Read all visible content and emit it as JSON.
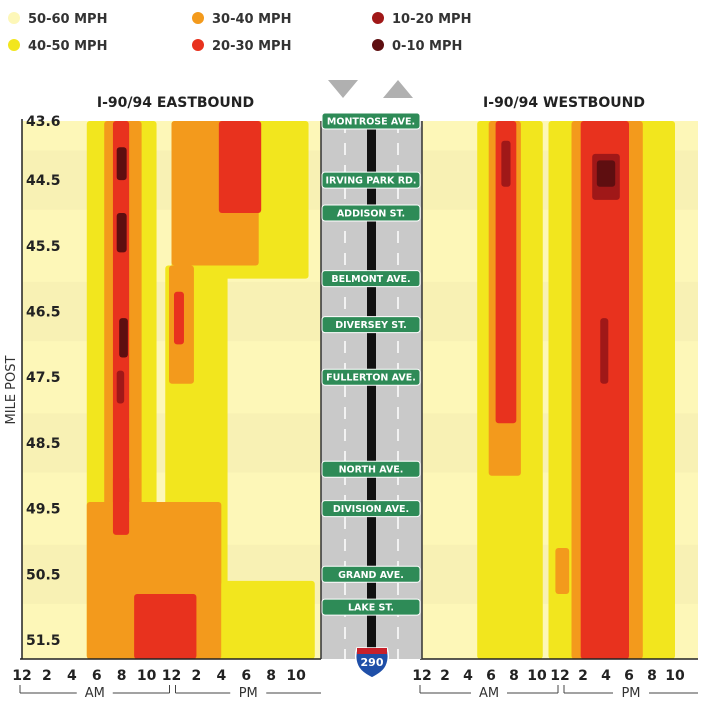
{
  "chart_data": {
    "type": "heatmap",
    "legend": [
      {
        "label": "50-60 MPH",
        "color": "#fdf7b8"
      },
      {
        "label": "40-50 MPH",
        "color": "#f2e61e"
      },
      {
        "label": "30-40 MPH",
        "color": "#f39a1c"
      },
      {
        "label": "20-30 MPH",
        "color": "#e8321e"
      },
      {
        "label": "10-20 MPH",
        "color": "#a01818"
      },
      {
        "label": "0-10 MPH",
        "color": "#5e0e10"
      }
    ],
    "ylabel": "MILE POST",
    "yticks": [
      "43.6",
      "44.5",
      "45.5",
      "46.5",
      "47.5",
      "48.5",
      "49.5",
      "50.5",
      "51.5"
    ],
    "ylim": [
      43.6,
      51.9
    ],
    "xticks": [
      "12",
      "2",
      "4",
      "6",
      "8",
      "10",
      "12",
      "2",
      "4",
      "6",
      "8",
      "10"
    ],
    "xticks_hours": [
      0,
      2,
      4,
      6,
      8,
      10,
      12,
      14,
      16,
      18,
      20,
      22
    ],
    "am_label": "AM",
    "pm_label": "PM",
    "panels": [
      {
        "title": "I-90/94 EASTBOUND",
        "bands": [
          {
            "x": 5.2,
            "x2": 10.8,
            "y": 43.6,
            "y2": 51.9,
            "speed": "40-50 MPH"
          },
          {
            "x": 6.6,
            "x2": 9.6,
            "y": 43.6,
            "y2": 51.9,
            "speed": "30-40 MPH"
          },
          {
            "x": 7.3,
            "x2": 8.6,
            "y": 43.6,
            "y2": 51.6,
            "speed": "20-30 MPH"
          },
          {
            "x": 7.6,
            "x2": 8.4,
            "y": 44.0,
            "y2": 44.5,
            "speed": "0-10 MPH"
          },
          {
            "x": 7.6,
            "x2": 8.4,
            "y": 45.0,
            "y2": 45.6,
            "speed": "0-10 MPH"
          },
          {
            "x": 7.8,
            "x2": 8.5,
            "y": 46.6,
            "y2": 47.2,
            "speed": "0-10 MPH"
          },
          {
            "x": 7.6,
            "x2": 8.2,
            "y": 47.4,
            "y2": 47.9,
            "speed": "10-20 MPH"
          },
          {
            "x": 12.0,
            "x2": 23.0,
            "y": 43.6,
            "y2": 46.0,
            "speed": "40-50 MPH"
          },
          {
            "x": 12.0,
            "x2": 19.0,
            "y": 43.6,
            "y2": 45.8,
            "speed": "30-40 MPH"
          },
          {
            "x": 15.8,
            "x2": 19.2,
            "y": 43.6,
            "y2": 45.0,
            "speed": "20-30 MPH"
          },
          {
            "x": 11.5,
            "x2": 16.5,
            "y": 45.8,
            "y2": 51.9,
            "speed": "40-50 MPH"
          },
          {
            "x": 11.8,
            "x2": 13.8,
            "y": 45.8,
            "y2": 47.6,
            "speed": "30-40 MPH"
          },
          {
            "x": 12.2,
            "x2": 13.0,
            "y": 46.2,
            "y2": 47.0,
            "speed": "20-30 MPH"
          },
          {
            "x": 5.2,
            "x2": 16.0,
            "y": 49.4,
            "y2": 51.9,
            "speed": "30-40 MPH"
          },
          {
            "x": 16.0,
            "x2": 23.5,
            "y": 50.6,
            "y2": 51.9,
            "speed": "40-50 MPH"
          },
          {
            "x": 9.0,
            "x2": 14.0,
            "y": 50.8,
            "y2": 51.9,
            "speed": "20-30 MPH"
          },
          {
            "x": 7.3,
            "x2": 8.6,
            "y": 49.0,
            "y2": 49.9,
            "speed": "20-30 MPH"
          }
        ]
      },
      {
        "title": "I-90/94 WESTBOUND",
        "bands": [
          {
            "x": 4.8,
            "x2": 10.5,
            "y": 43.6,
            "y2": 51.9,
            "speed": "40-50 MPH"
          },
          {
            "x": 5.8,
            "x2": 8.6,
            "y": 43.6,
            "y2": 49.0,
            "speed": "30-40 MPH"
          },
          {
            "x": 6.4,
            "x2": 8.2,
            "y": 43.6,
            "y2": 48.2,
            "speed": "20-30 MPH"
          },
          {
            "x": 6.9,
            "x2": 7.7,
            "y": 43.9,
            "y2": 44.6,
            "speed": "10-20 MPH"
          },
          {
            "x": 11.0,
            "x2": 22.0,
            "y": 43.6,
            "y2": 51.9,
            "speed": "40-50 MPH"
          },
          {
            "x": 13.0,
            "x2": 19.2,
            "y": 43.6,
            "y2": 51.9,
            "speed": "30-40 MPH"
          },
          {
            "x": 13.8,
            "x2": 18.0,
            "y": 43.6,
            "y2": 51.9,
            "speed": "20-30 MPH"
          },
          {
            "x": 14.8,
            "x2": 17.2,
            "y": 44.1,
            "y2": 44.8,
            "speed": "10-20 MPH"
          },
          {
            "x": 15.2,
            "x2": 16.8,
            "y": 44.2,
            "y2": 44.6,
            "speed": "0-10 MPH"
          },
          {
            "x": 15.5,
            "x2": 16.2,
            "y": 46.6,
            "y2": 47.6,
            "speed": "10-20 MPH"
          },
          {
            "x": 11.6,
            "x2": 12.8,
            "y": 50.1,
            "y2": 50.8,
            "speed": "30-40 MPH"
          }
        ]
      }
    ],
    "streets": [
      {
        "name": "MONTROSE AVE.",
        "mile": 43.6
      },
      {
        "name": "IRVING PARK RD.",
        "mile": 44.5
      },
      {
        "name": "ADDISON ST.",
        "mile": 45.0
      },
      {
        "name": "BELMONT AVE.",
        "mile": 46.0
      },
      {
        "name": "DIVERSEY ST.",
        "mile": 46.7
      },
      {
        "name": "FULLERTON AVE.",
        "mile": 47.5
      },
      {
        "name": "NORTH AVE.",
        "mile": 48.9
      },
      {
        "name": "DIVISION AVE.",
        "mile": 49.5
      },
      {
        "name": "GRAND AVE.",
        "mile": 50.5
      },
      {
        "name": "LAKE ST.",
        "mile": 51.0
      }
    ],
    "shield": "290"
  }
}
